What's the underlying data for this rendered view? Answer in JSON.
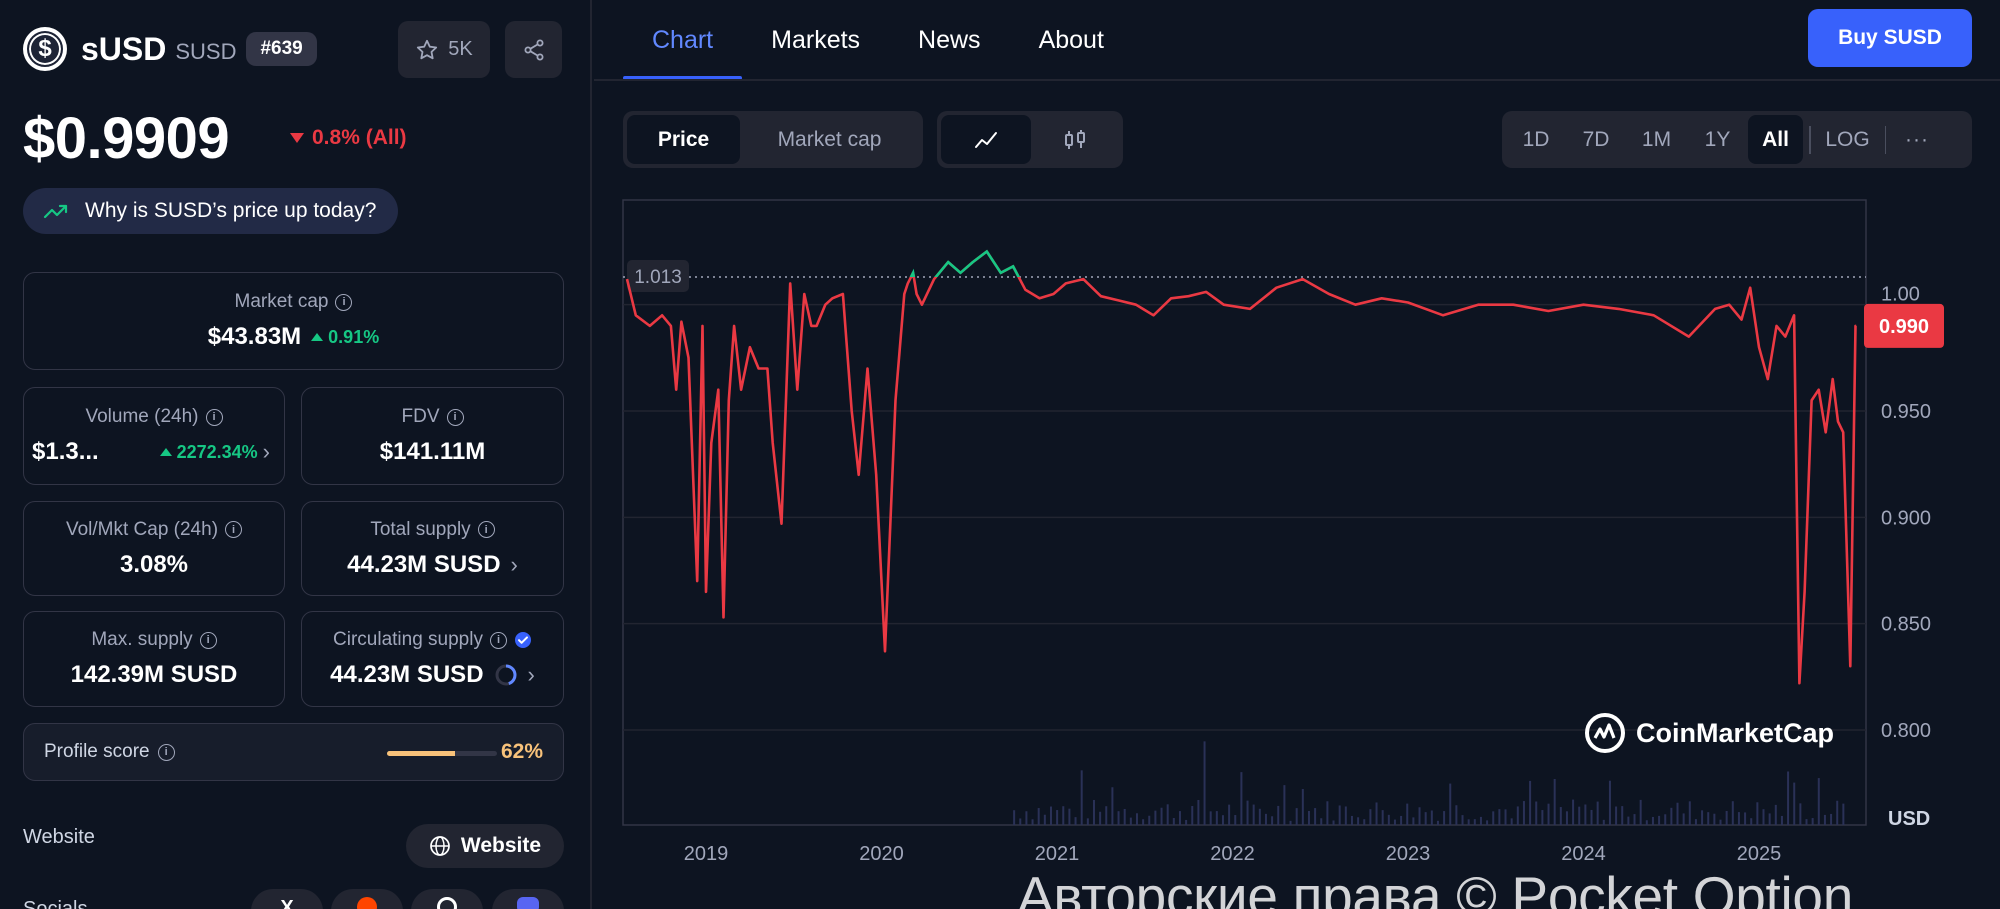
{
  "coin": {
    "name": "sUSD",
    "symbol": "SUSD",
    "logo_glyph": "$",
    "rank": "#639",
    "watchlist_count": "5K",
    "price": "$0.9909",
    "change": "0.8% (All)",
    "why_label": "Why is SUSD’s price up today?"
  },
  "stats": {
    "market_cap": {
      "label": "Market cap",
      "value": "$43.83M",
      "change": "0.91%"
    },
    "volume": {
      "label": "Volume (24h)",
      "value": "$1.3...",
      "change": "2272.34%"
    },
    "fdv": {
      "label": "FDV",
      "value": "$141.11M"
    },
    "vol_mkt": {
      "label": "Vol/Mkt Cap (24h)",
      "value": "3.08%"
    },
    "total_supply": {
      "label": "Total supply",
      "value": "44.23M SUSD"
    },
    "max_supply": {
      "label": "Max. supply",
      "value": "142.39M SUSD"
    },
    "circ_supply": {
      "label": "Circulating supply",
      "value": "44.23M SUSD"
    }
  },
  "profile": {
    "label": "Profile score",
    "value": "62%",
    "fraction": 0.62
  },
  "links": {
    "website_label": "Website",
    "website_button": "Website",
    "socials_label": "Socials",
    "social_glyphs": [
      "X",
      "",
      "",
      ""
    ]
  },
  "nav": {
    "tabs": [
      "Chart",
      "Markets",
      "News",
      "About"
    ],
    "active_tab": "Chart",
    "buy_label": "Buy SUSD"
  },
  "chart_controls": {
    "metric_options": [
      "Price",
      "Market cap"
    ],
    "metric_selected": "Price",
    "style_options": [
      "line-chart-icon",
      "candlestick-icon"
    ],
    "style_selected": "line-chart-icon",
    "ranges": [
      "1D",
      "7D",
      "1M",
      "1Y",
      "All"
    ],
    "range_selected": "All",
    "scale_label": "LOG",
    "more_label": "···"
  },
  "chart_data": {
    "type": "line",
    "title": "",
    "ylabel": "USD",
    "xlabel": "",
    "ylim": [
      0.77,
      1.03
    ],
    "y_ticks": [
      "0.800",
      "0.850",
      "0.900",
      "0.950"
    ],
    "y_tick_partial": "1.00",
    "x_ticks": [
      "2019",
      "2020",
      "2021",
      "2022",
      "2023",
      "2024",
      "2025"
    ],
    "reference_line": {
      "label": "1.013",
      "value": 1.013
    },
    "current_label": "0.990",
    "current_value": 0.99,
    "colors": {
      "above": "#16c784",
      "below": "#ea3943"
    },
    "series": [
      {
        "x": [
          2018.55,
          2018.6,
          2018.68,
          2018.75,
          2018.8,
          2018.83,
          2018.86,
          2018.9,
          2018.95,
          2018.98,
          2019.0,
          2019.03,
          2019.07,
          2019.1,
          2019.13,
          2019.16,
          2019.2,
          2019.25,
          2019.3,
          2019.35,
          2019.38,
          2019.43,
          2019.48,
          2019.52,
          2019.56,
          2019.6,
          2019.63,
          2019.68,
          2019.72,
          2019.78,
          2019.83,
          2019.87,
          2019.92,
          2019.97,
          2020.02,
          2020.08,
          2020.13,
          2020.15,
          2020.18,
          2020.2,
          2020.23,
          2020.3,
          2020.38,
          2020.45,
          2020.52,
          2020.6,
          2020.68,
          2020.75,
          2020.82,
          2020.9,
          2020.98,
          2021.05,
          2021.15,
          2021.25,
          2021.35,
          2021.45,
          2021.55,
          2021.65,
          2021.75,
          2021.85,
          2021.95,
          2022.1,
          2022.25,
          2022.4,
          2022.55,
          2022.7,
          2022.85,
          2023.0,
          2023.2,
          2023.4,
          2023.6,
          2023.8,
          2024.0,
          2024.2,
          2024.4,
          2024.6,
          2024.75,
          2024.83,
          2024.9,
          2024.95,
          2025.0,
          2025.05,
          2025.1,
          2025.15,
          2025.2,
          2025.23,
          2025.26,
          2025.3,
          2025.34,
          2025.38,
          2025.42,
          2025.45,
          2025.48,
          2025.52,
          2025.55
        ],
        "y": [
          1.012,
          0.995,
          0.99,
          0.995,
          0.99,
          0.96,
          0.992,
          0.975,
          0.87,
          0.99,
          0.865,
          0.935,
          0.96,
          0.853,
          0.955,
          0.99,
          0.96,
          0.98,
          0.97,
          0.97,
          0.935,
          0.897,
          1.01,
          0.96,
          1.005,
          0.99,
          0.99,
          1.0,
          1.003,
          1.005,
          0.95,
          0.92,
          0.97,
          0.92,
          0.837,
          0.955,
          1.005,
          1.01,
          1.015,
          1.005,
          1.0,
          1.012,
          1.02,
          1.015,
          1.02,
          1.025,
          1.015,
          1.018,
          1.007,
          1.003,
          1.005,
          1.01,
          1.012,
          1.004,
          1.002,
          1.0,
          0.995,
          1.003,
          1.004,
          1.006,
          1.0,
          0.998,
          1.008,
          1.012,
          1.005,
          1.0,
          1.003,
          1.001,
          0.995,
          1.0,
          1.0,
          0.997,
          1.0,
          0.998,
          0.995,
          0.985,
          0.998,
          1.0,
          0.993,
          1.008,
          0.98,
          0.965,
          0.99,
          0.985,
          0.995,
          0.822,
          0.865,
          0.955,
          0.96,
          0.94,
          0.965,
          0.945,
          0.94,
          0.83,
          0.99
        ]
      }
    ],
    "volume_spikes_note": "volume bars along bottom"
  },
  "watermark": {
    "text": "Авторские права © Pocket Option",
    "brand": "CoinMarketCap"
  }
}
